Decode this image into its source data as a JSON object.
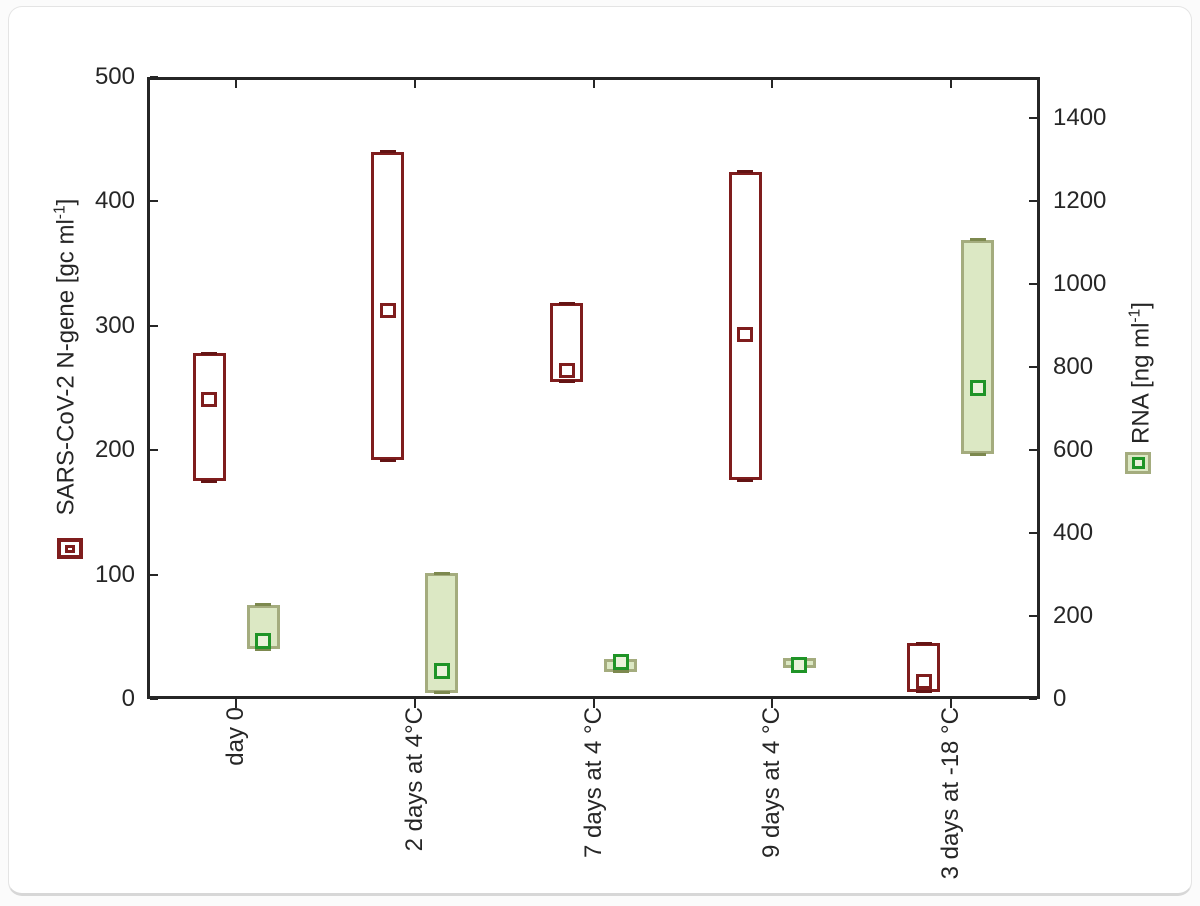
{
  "figure": {
    "left_axis_title": {
      "prefix": "SARS-CoV-2 N-gene [gc ml",
      "sup": "-1",
      "suffix": "]"
    },
    "right_axis_title": {
      "prefix": "RNA [ng ml",
      "sup": "-1",
      "suffix": "]"
    }
  },
  "colors": {
    "axis": "#262626",
    "grid": "#e9e9e9",
    "ngene_stroke": "#7f1d1d",
    "ngene_fill": "#ffffff",
    "ngene_cap": "#641414",
    "rna_stroke": "#a4ac7e",
    "rna_fill": "#dce8c4",
    "rna_cap": "#7d894f",
    "rna_marker_stroke": "#1f9427",
    "rna_marker_fill": "#eaf2da"
  },
  "chart_data": {
    "type": "box",
    "title": "",
    "categories": [
      "day 0",
      "2 days at 4°C",
      "7 days at 4 °C",
      "9 days at 4 °C",
      "3 days at -18 °C"
    ],
    "left_axis": {
      "label": "SARS-CoV-2 N-gene [gc ml-1]",
      "min": 0,
      "max": 500,
      "tick_step": 100,
      "ticks": [
        0,
        100,
        200,
        300,
        400,
        500
      ],
      "grid_ticks": [
        100,
        200,
        300,
        400
      ]
    },
    "right_axis": {
      "label": "RNA [ng ml-1]",
      "min": 0,
      "max": 1500,
      "tick_step": 200,
      "ticks": [
        0,
        200,
        400,
        600,
        800,
        1000,
        1200,
        1400
      ]
    },
    "grid": "horizontal gridlines at left-axis ticks 100-400",
    "legend_position": "beside axis titles",
    "series": [
      {
        "name": "SARS-CoV-2 N-gene [gc ml-1]",
        "axis": "left",
        "style": "open dark-red box, open square mean marker, min-max caps",
        "boxes": [
          {
            "category": "day 0",
            "min": 175,
            "max": 278,
            "mean": 240
          },
          {
            "category": "2 days at 4°C",
            "min": 192,
            "max": 440,
            "mean": 312
          },
          {
            "category": "7 days at 4 °C",
            "min": 255,
            "max": 318,
            "mean": 264
          },
          {
            "category": "9 days at 4 °C",
            "min": 176,
            "max": 424,
            "mean": 293
          },
          {
            "category": "3 days at -18 °C",
            "min": 6,
            "max": 45,
            "mean": 14
          }
        ]
      },
      {
        "name": "RNA [ng ml-1]",
        "axis": "right",
        "style": "light-green filled box, open green square mean marker, min-max caps",
        "boxes": [
          {
            "category": "day 0",
            "min": 120,
            "max": 227,
            "mean": 141
          },
          {
            "category": "2 days at 4°C",
            "min": 15,
            "max": 303,
            "mean": 68
          },
          {
            "category": "7 days at 4 °C",
            "min": 66,
            "max": 96,
            "mean": 89
          },
          {
            "category": "9 days at 4 °C",
            "min": 74,
            "max": 98,
            "mean": 83
          },
          {
            "category": "3 days at -18 °C",
            "min": 590,
            "max": 1108,
            "mean": 750
          }
        ]
      }
    ]
  }
}
